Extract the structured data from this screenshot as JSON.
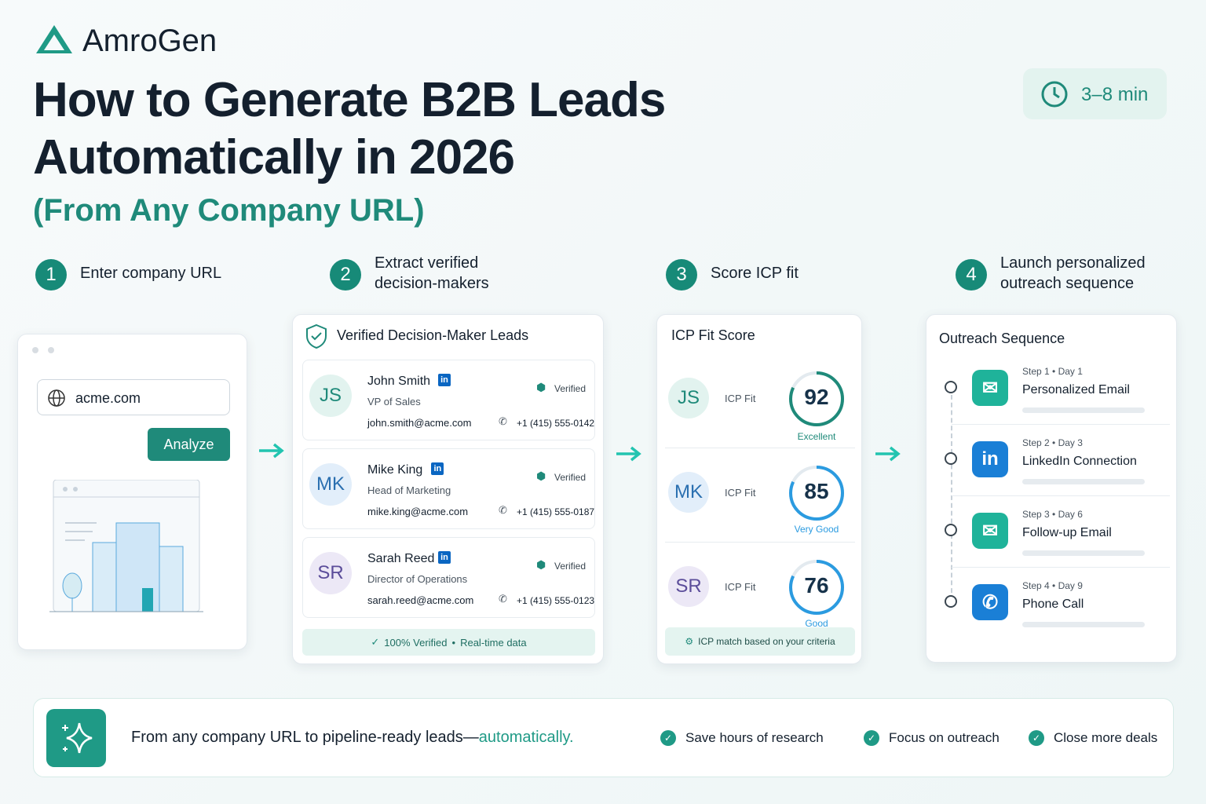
{
  "brand": "AmroGen",
  "header": {
    "title_line1": "How to Generate B2B Leads",
    "title_line2": "Automatically in 2026",
    "subtitle": "(From Any Company URL)",
    "duration": "3–8 min"
  },
  "steps": [
    {
      "number": 1,
      "label_lines": [
        "Enter company URL"
      ]
    },
    {
      "number": 2,
      "label_lines": [
        "Extract verified",
        "decision-makers"
      ]
    },
    {
      "number": 3,
      "label_lines": [
        "Score ICP fit"
      ]
    },
    {
      "number": 4,
      "label_lines": [
        "Launch personalized",
        "outreach sequence"
      ]
    }
  ],
  "url_panel": {
    "url": "acme.com",
    "button": "Analyze"
  },
  "leads_panel": {
    "title": "Verified Decision-Maker Leads",
    "leads": [
      {
        "initials": "JS",
        "name": "John Smith",
        "role": "VP of Sales",
        "email": "john.smith@acme.com",
        "phone": "+1 (415) 555-0142",
        "status": "Verified"
      },
      {
        "initials": "MK",
        "name": "Mike King",
        "role": "Head of Marketing",
        "email": "mike.king@acme.com",
        "phone": "+1 (415) 555-0187",
        "status": "Verified"
      },
      {
        "initials": "SR",
        "name": "Sarah Reed",
        "role": "Director of Operations",
        "email": "sarah.reed@acme.com",
        "phone": "+1 (415) 555-0123",
        "status": "Verified"
      }
    ],
    "footer": [
      "100% Verified",
      "Real-time data"
    ]
  },
  "icp_panel": {
    "title": "ICP Fit Score",
    "scores": [
      {
        "initials": "JS",
        "label": "ICP Fit",
        "score": 92,
        "rating": "Excellent"
      },
      {
        "initials": "MK",
        "label": "ICP Fit",
        "score": 85,
        "rating": "Very Good"
      },
      {
        "initials": "SR",
        "label": "ICP Fit",
        "score": 76,
        "rating": "Good"
      }
    ],
    "note": "ICP match based on your criteria"
  },
  "outreach_panel": {
    "title": "Outreach Sequence",
    "steps": [
      {
        "step": "Step 1",
        "day": "Day 1",
        "label": "Personalized Email"
      },
      {
        "step": "Step 2",
        "day": "Day 3",
        "label": "LinkedIn Connection"
      },
      {
        "step": "Step 3",
        "day": "Day 6",
        "label": "Follow-up Email"
      },
      {
        "step": "Step 4",
        "day": "Day 9",
        "label": "Phone Call"
      }
    ]
  },
  "banner": {
    "text": "From any company URL to pipeline-ready leads—",
    "highlight": "automatically.",
    "benefits": [
      "Save hours of research",
      "Focus on outreach",
      "Close more deals"
    ]
  }
}
